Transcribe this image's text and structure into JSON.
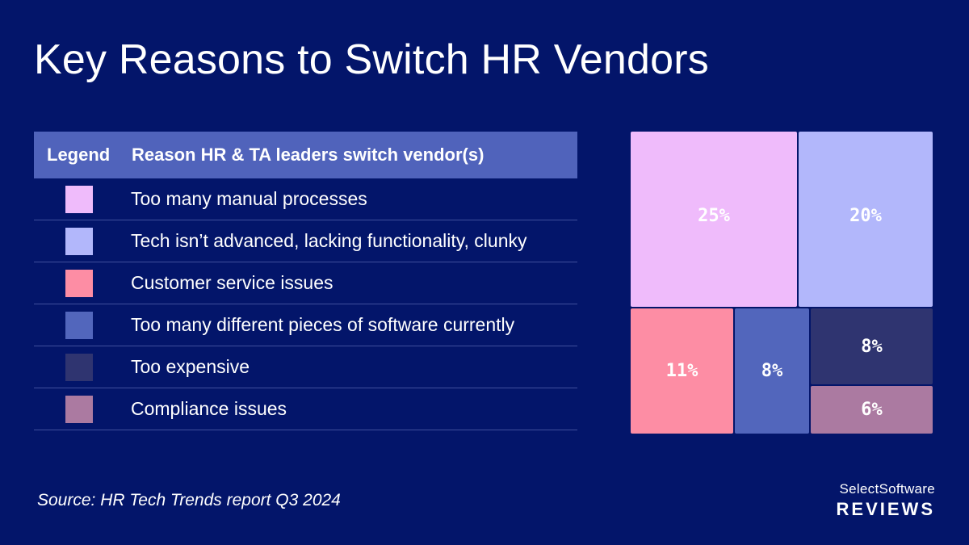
{
  "title": "Key Reasons to Switch HR Vendors",
  "legend": {
    "header_legend": "Legend",
    "header_reason": "Reason HR & TA leaders switch vendor(s)"
  },
  "source": "Source: HR Tech Trends report Q3 2024",
  "brand": {
    "line1": "SelectSoftware",
    "line2": "REVIEWS"
  },
  "chart_data": {
    "type": "treemap",
    "series": [
      {
        "name": "Too many manual processes",
        "value": 25,
        "label": "25%",
        "color": "#efbbfb"
      },
      {
        "name": "Tech isn’t advanced, lacking functionality, clunky",
        "value": 20,
        "label": "20%",
        "color": "#b2b7fb"
      },
      {
        "name": "Customer service issues",
        "value": 11,
        "label": "11%",
        "color": "#fd8da4"
      },
      {
        "name": "Too many different pieces of software currently",
        "value": 8,
        "label": "8%",
        "color": "#5266bc"
      },
      {
        "name": "Too expensive",
        "value": 8,
        "label": "8%",
        "color": "#2f3470"
      },
      {
        "name": "Compliance issues",
        "value": 6,
        "label": "6%",
        "color": "#ab7aa1"
      }
    ]
  }
}
